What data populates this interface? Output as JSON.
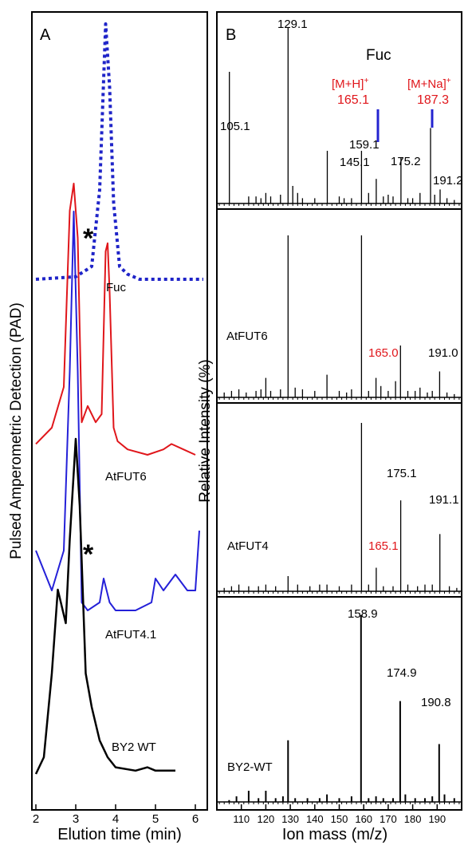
{
  "panel_a": {
    "panel_letter": "A",
    "ylabel": "Pulsed Amperometric Detection (PAD)",
    "xlabel": "Elution time (min)",
    "asterisk": "*",
    "x_ticks": [
      "2",
      "3",
      "4",
      "5",
      "6"
    ],
    "trace_labels": {
      "fuc": "Fuc",
      "atfut6": "AtFUT6",
      "atfut41": "AtFUT4.1",
      "by2": "BY2 WT"
    }
  },
  "panel_b": {
    "panel_letter": "B",
    "ylabel": "Relative Intensity (%)",
    "xlabel": "Ion mass (m/z)",
    "x_ticks": [
      "110",
      "120",
      "130",
      "140",
      "150",
      "160",
      "170",
      "180",
      "190"
    ],
    "fuc": {
      "title": "Fuc",
      "mh_label": "[M+H]",
      "mh_sup": "+",
      "mh_value": "165.1",
      "mna_label": "[M+Na]",
      "mna_sup": "+",
      "mna_value": "187.3",
      "peaks": [
        "129.1",
        "105.1",
        "145.1",
        "159.1",
        "175.2",
        "191.2"
      ]
    },
    "atfut6": {
      "label": "AtFUT6",
      "peaks": [
        "165.0",
        "191.0"
      ]
    },
    "atfut4": {
      "label": "AtFUT4",
      "peaks": [
        "175.1",
        "165.1",
        "191.1"
      ]
    },
    "by2": {
      "label": "BY2-WT",
      "peaks": [
        "158.9",
        "174.9",
        "190.8"
      ]
    }
  },
  "colors": {
    "fuc": "#1f24c8",
    "atfut6": "#e0161b",
    "atfut41": "#2420d8",
    "by2": "#000000",
    "highlight": "#e0161b",
    "marker": "#2424d0"
  },
  "chart_data": [
    {
      "type": "line",
      "title": "",
      "xlabel": "Elution time (min)",
      "ylabel": "Pulsed Amperometric Detection (PAD)",
      "xlim": [
        1.9,
        6.3
      ],
      "series": [
        {
          "name": "Fuc",
          "style": "dotted",
          "x": [
            2.0,
            3.0,
            3.4,
            3.6,
            3.75,
            3.85,
            3.95,
            4.1,
            4.3,
            4.6,
            5.0,
            6.2
          ],
          "y": [
            0,
            0.01,
            0.05,
            0.35,
            1.0,
            0.75,
            0.3,
            0.05,
            0.02,
            0.0,
            0.0,
            0.0
          ]
        },
        {
          "name": "AtFUT6",
          "x": [
            2.0,
            2.4,
            2.7,
            2.85,
            2.95,
            3.05,
            3.15,
            3.3,
            3.5,
            3.65,
            3.75,
            3.8,
            3.85,
            3.95,
            4.05,
            4.3,
            4.8,
            5.2,
            5.4,
            5.7,
            6.0
          ],
          "y": [
            0.04,
            0.1,
            0.25,
            0.9,
            1.0,
            0.8,
            0.12,
            0.18,
            0.12,
            0.15,
            0.75,
            0.78,
            0.6,
            0.1,
            0.05,
            0.02,
            0.0,
            0.02,
            0.04,
            0.02,
            0.0
          ]
        },
        {
          "name": "AtFUT4.1",
          "x": [
            2.0,
            2.4,
            2.7,
            2.85,
            2.95,
            3.05,
            3.15,
            3.3,
            3.6,
            3.7,
            3.85,
            4.0,
            4.5,
            4.9,
            5.0,
            5.2,
            5.5,
            5.8,
            6.0,
            6.1
          ],
          "y": [
            0.15,
            0.05,
            0.15,
            0.6,
            1.0,
            0.6,
            0.02,
            0.0,
            0.02,
            0.08,
            0.02,
            0.0,
            0.0,
            0.02,
            0.08,
            0.05,
            0.09,
            0.05,
            0.05,
            0.2
          ]
        },
        {
          "name": "BY2 WT",
          "x": [
            2.0,
            2.2,
            2.4,
            2.55,
            2.65,
            2.75,
            2.85,
            3.0,
            3.1,
            3.25,
            3.4,
            3.6,
            3.8,
            4.0,
            4.5,
            4.8,
            5.0,
            5.5
          ],
          "y": [
            0.0,
            0.05,
            0.3,
            0.55,
            0.5,
            0.45,
            0.7,
            1.0,
            0.8,
            0.3,
            0.2,
            0.1,
            0.05,
            0.02,
            0.01,
            0.02,
            0.01,
            0.01
          ]
        }
      ]
    },
    {
      "type": "bar",
      "title": "",
      "xlabel": "Ion mass (m/z)",
      "ylabel": "Relative Intensity (%)",
      "xlim": [
        100,
        200
      ],
      "series": [
        {
          "name": "Fuc",
          "x": [
            105.1,
            113,
            116,
            118,
            120,
            122,
            126,
            129.1,
            131,
            133,
            135,
            140,
            145.1,
            150,
            152,
            155,
            159.1,
            162,
            165.1,
            168,
            170,
            172,
            175.2,
            178,
            180,
            183,
            187.3,
            189,
            191.2,
            194,
            197
          ],
          "y": [
            75,
            4,
            4,
            3,
            6,
            4,
            5,
            100,
            10,
            6,
            3,
            3,
            30,
            4,
            3,
            3,
            30,
            6,
            14,
            4,
            5,
            4,
            26,
            3,
            3,
            6,
            43,
            5,
            8,
            3,
            2
          ]
        },
        {
          "name": "AtFUT6",
          "x": [
            103,
            106,
            109,
            112,
            116,
            118,
            120,
            122,
            126,
            129.1,
            132,
            135,
            140,
            145,
            150,
            153,
            155,
            159.1,
            162,
            165.0,
            167,
            170,
            173,
            175.0,
            178,
            181,
            183,
            186,
            188,
            191.0,
            194,
            197
          ],
          "y": [
            3,
            4,
            5,
            3,
            4,
            5,
            12,
            4,
            5,
            100,
            6,
            5,
            4,
            14,
            4,
            3,
            5,
            100,
            4,
            12,
            7,
            4,
            10,
            32,
            4,
            4,
            6,
            3,
            4,
            16,
            3,
            2
          ]
        },
        {
          "name": "AtFUT4",
          "x": [
            103,
            106,
            109,
            113,
            117,
            120,
            124,
            129.1,
            133,
            138,
            142,
            145,
            150,
            155,
            159.1,
            162,
            165.1,
            168,
            172,
            175.1,
            178,
            182,
            185,
            188,
            191.1,
            195,
            198
          ],
          "y": [
            2,
            3,
            4,
            3,
            3,
            4,
            3,
            9,
            4,
            3,
            4,
            4,
            3,
            4,
            100,
            4,
            14,
            3,
            3,
            54,
            4,
            3,
            4,
            4,
            34,
            3,
            2
          ]
        },
        {
          "name": "BY2-WT",
          "x": [
            105,
            108,
            113,
            117,
            120,
            124,
            127,
            129.1,
            132,
            137,
            142,
            145,
            150,
            155,
            158.9,
            162,
            165,
            168,
            172,
            174.9,
            177,
            181,
            185,
            188,
            190.8,
            193,
            197
          ],
          "y": [
            1,
            3,
            6,
            2,
            6,
            2,
            3,
            33,
            2,
            2,
            2,
            4,
            2,
            3,
            100,
            2,
            3,
            2,
            2,
            54,
            4,
            2,
            2,
            3,
            31,
            4,
            2
          ]
        }
      ]
    }
  ]
}
